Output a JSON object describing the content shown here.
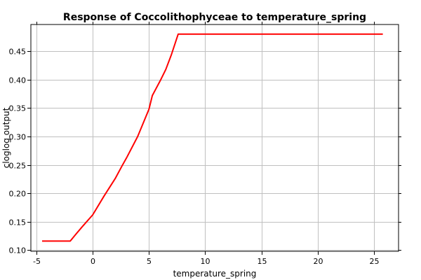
{
  "chart_data": {
    "type": "line",
    "title": "Response of Coccolithophyceae to temperature_spring",
    "xlabel": "temperature_spring",
    "ylabel": "cloglog output",
    "xlim": [
      -5.5,
      27.2
    ],
    "ylim": [
      0.098,
      0.497
    ],
    "xticks": [
      -5,
      0,
      5,
      10,
      15,
      20,
      25
    ],
    "yticks": [
      0.1,
      0.15,
      0.2,
      0.25,
      0.3,
      0.35,
      0.4,
      0.45
    ],
    "grid": true,
    "series_color": "#ff0000",
    "series": [
      {
        "x": [
          -4.5,
          -2.0,
          -1.5,
          -0.9,
          0.0,
          1.0,
          2.0,
          2.6,
          3.0,
          4.0,
          5.0,
          5.3,
          6.0,
          6.5,
          7.0,
          7.6,
          25.8
        ],
        "y": [
          0.116,
          0.116,
          0.128,
          0.142,
          0.162,
          0.195,
          0.226,
          0.248,
          0.262,
          0.3,
          0.348,
          0.372,
          0.398,
          0.418,
          0.444,
          0.48,
          0.48
        ]
      }
    ]
  }
}
